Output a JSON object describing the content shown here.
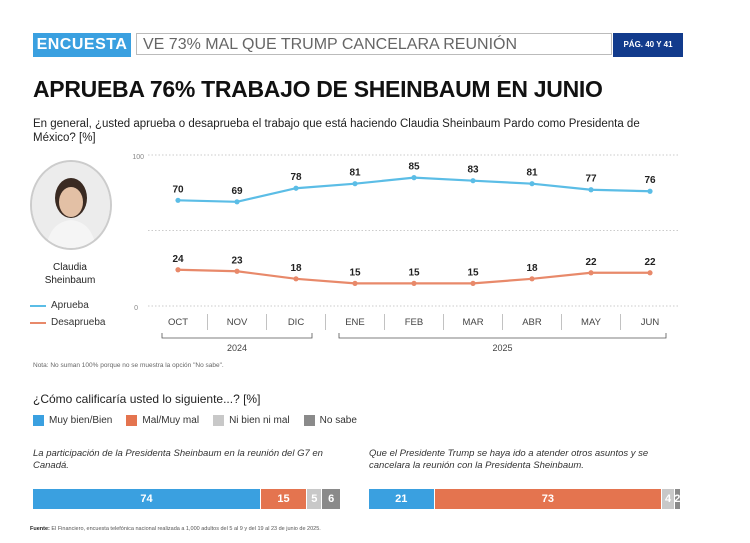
{
  "header": {
    "tag": "ENCUESTA",
    "subtitle": "VE 73% MAL QUE TRUMP CANCELARA REUNIÓN",
    "page": "PÁG. 40 Y 41"
  },
  "headline": "APRUEBA 76% TRABAJO DE SHEINBAUM EN JUNIO",
  "question": "En general, ¿usted aprueba o desaprueba el trabajo que está haciendo Claudia Sheinbaum Pardo como Presidenta de México? [%]",
  "person_name": "Claudia Sheinbaum",
  "chart_data": {
    "type": "line",
    "categories": [
      "OCT",
      "NOV",
      "DIC",
      "ENE",
      "FEB",
      "MAR",
      "ABR",
      "MAY",
      "JUN"
    ],
    "year_groups": [
      {
        "label": "2024",
        "start": 0,
        "end": 2
      },
      {
        "label": "2025",
        "start": 3,
        "end": 8
      }
    ],
    "ylim": [
      0,
      100
    ],
    "ytick_labels": [
      "100",
      "0"
    ],
    "series": [
      {
        "name": "Aprueba",
        "color": "#5bbde6",
        "values": [
          70,
          69,
          78,
          81,
          85,
          83,
          81,
          77,
          76
        ]
      },
      {
        "name": "Desaprueba",
        "color": "#e8896a",
        "values": [
          24,
          23,
          18,
          15,
          15,
          15,
          18,
          22,
          22
        ]
      }
    ],
    "grid": "dotted horizontal"
  },
  "note": "Nota: No suman 100% porque no se muestra la opción \"No sabe\".",
  "section2": {
    "question": "¿Cómo calificaría usted lo siguiente...? [%]",
    "legend": [
      {
        "label": "Muy bien/Bien",
        "color": "#3aa0e0"
      },
      {
        "label": "Mal/Muy mal",
        "color": "#e4744f"
      },
      {
        "label": "Ni bien ni mal",
        "color": "#c8c8c8"
      },
      {
        "label": "No sabe",
        "color": "#8a8a8a"
      }
    ],
    "items": [
      {
        "caption": "La participación de la Presidenta Sheinbaum en la reunión del G7 en Canadá.",
        "values": [
          74,
          15,
          5,
          6
        ]
      },
      {
        "caption": "Que el Presidente Trump se haya ido a atender otros asuntos y se cancelara la reunión con la Presidenta Sheinbaum.",
        "values": [
          21,
          73,
          4,
          2
        ]
      }
    ]
  },
  "source": {
    "label": "Fuente:",
    "text": "El Financiero, encuesta telefónica nacional realizada a 1,000 adultos del 5 al 9 y del 19 al 23 de junio de 2025."
  }
}
